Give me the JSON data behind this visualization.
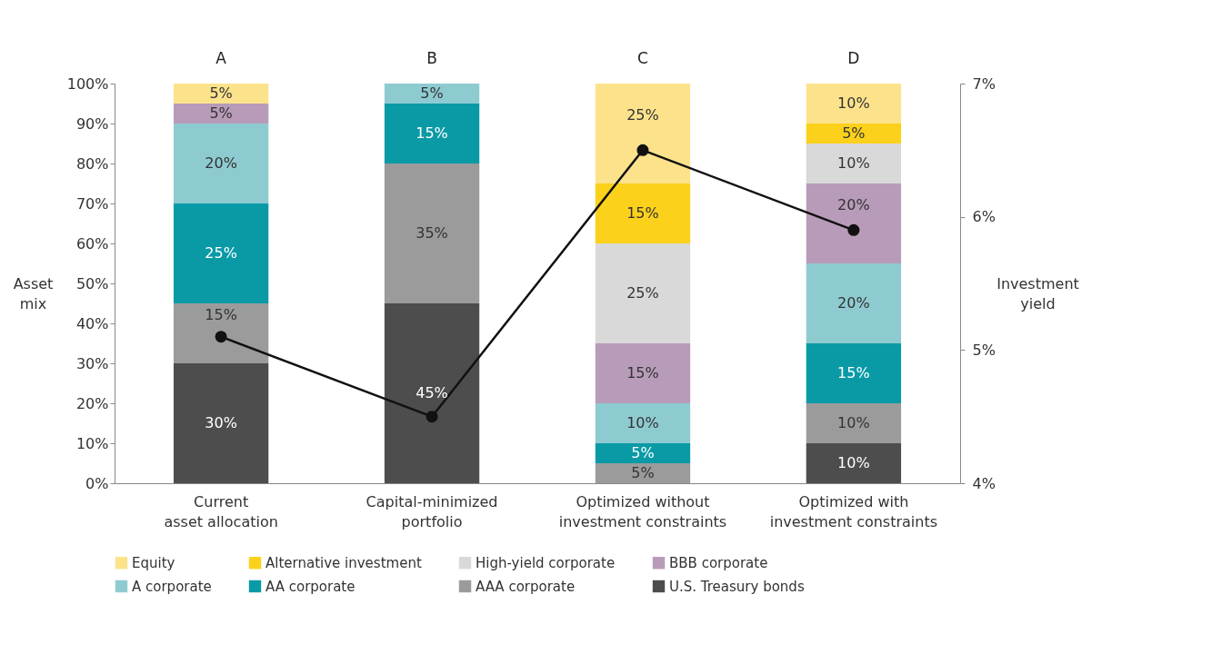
{
  "chart_data": {
    "type": "bar",
    "stacked": true,
    "categories": [
      "Current\nasset allocation",
      "Capital-minimized\nportfolio",
      "Optimized without\ninvestment constraints",
      "Optimized with\ninvestment constraints"
    ],
    "ylabel": "Asset\nmix",
    "y2label": "Investment\nyield",
    "ylim": [
      0,
      100
    ],
    "yticks": [
      {
        "value": 0,
        "label": "0%"
      },
      {
        "value": 10,
        "label": "10%"
      },
      {
        "value": 20,
        "label": "20%"
      },
      {
        "value": 30,
        "label": "30%"
      },
      {
        "value": 40,
        "label": "40%"
      },
      {
        "value": 50,
        "label": "50%"
      },
      {
        "value": 60,
        "label": "60%"
      },
      {
        "value": 70,
        "label": "70%"
      },
      {
        "value": 80,
        "label": "80%"
      },
      {
        "value": 90,
        "label": "90%"
      },
      {
        "value": 100,
        "label": "100%"
      }
    ],
    "y2lim": [
      4,
      7
    ],
    "y2ticks": [
      {
        "value": 4,
        "label": "4%"
      },
      {
        "value": 5,
        "label": "5%"
      },
      {
        "value": 6,
        "label": "6%"
      },
      {
        "value": 7,
        "label": "7%"
      }
    ],
    "grid": false,
    "legend": "bottom",
    "series": [
      {
        "name": "U.S. Treasury bonds",
        "color": "#4d4d4d",
        "values": [
          30,
          45,
          null,
          10
        ],
        "value_labels": [
          "30%",
          "45%",
          null,
          "10%"
        ]
      },
      {
        "name": "AAA corporate",
        "color": "#9b9b9b",
        "values": [
          15,
          35,
          5,
          10
        ],
        "value_labels": [
          "15%",
          "35%",
          "5%",
          "10%"
        ]
      },
      {
        "name": "AA corporate",
        "color": "#0a9aa6",
        "values": [
          25,
          15,
          5,
          15
        ],
        "value_labels": [
          "25%",
          "15%",
          "5%",
          "15%"
        ]
      },
      {
        "name": "A corporate",
        "color": "#8ecbd1",
        "values": [
          20,
          5,
          10,
          20
        ],
        "value_labels": [
          "20%",
          "5%",
          "10%",
          "20%"
        ]
      },
      {
        "name": "BBB corporate",
        "color": "#b89bb9",
        "values": [
          5,
          null,
          15,
          20
        ],
        "value_labels": [
          "5%",
          null,
          "15%",
          "20%"
        ]
      },
      {
        "name": "High-yield corporate",
        "color": "#d9d9d9",
        "values": [
          null,
          null,
          25,
          10
        ],
        "value_labels": [
          null,
          null,
          "25%",
          "10%"
        ]
      },
      {
        "name": "Alternative investment",
        "color": "#fbd11c",
        "values": [
          null,
          null,
          15,
          5
        ],
        "value_labels": [
          null,
          null,
          "15%",
          "5%"
        ]
      },
      {
        "name": "Equity",
        "color": "#fde28c",
        "values": [
          5,
          null,
          25,
          10
        ],
        "value_labels": [
          "5%",
          null,
          "25%",
          "10%"
        ]
      },
      {
        "type": "line",
        "axis": "y2",
        "color": "#111111",
        "marker": "circle",
        "line_style": "solid",
        "values": [
          5.1,
          4.5,
          6.5,
          5.9
        ]
      }
    ],
    "annotations": [
      "A",
      "B",
      "C",
      "D"
    ]
  }
}
